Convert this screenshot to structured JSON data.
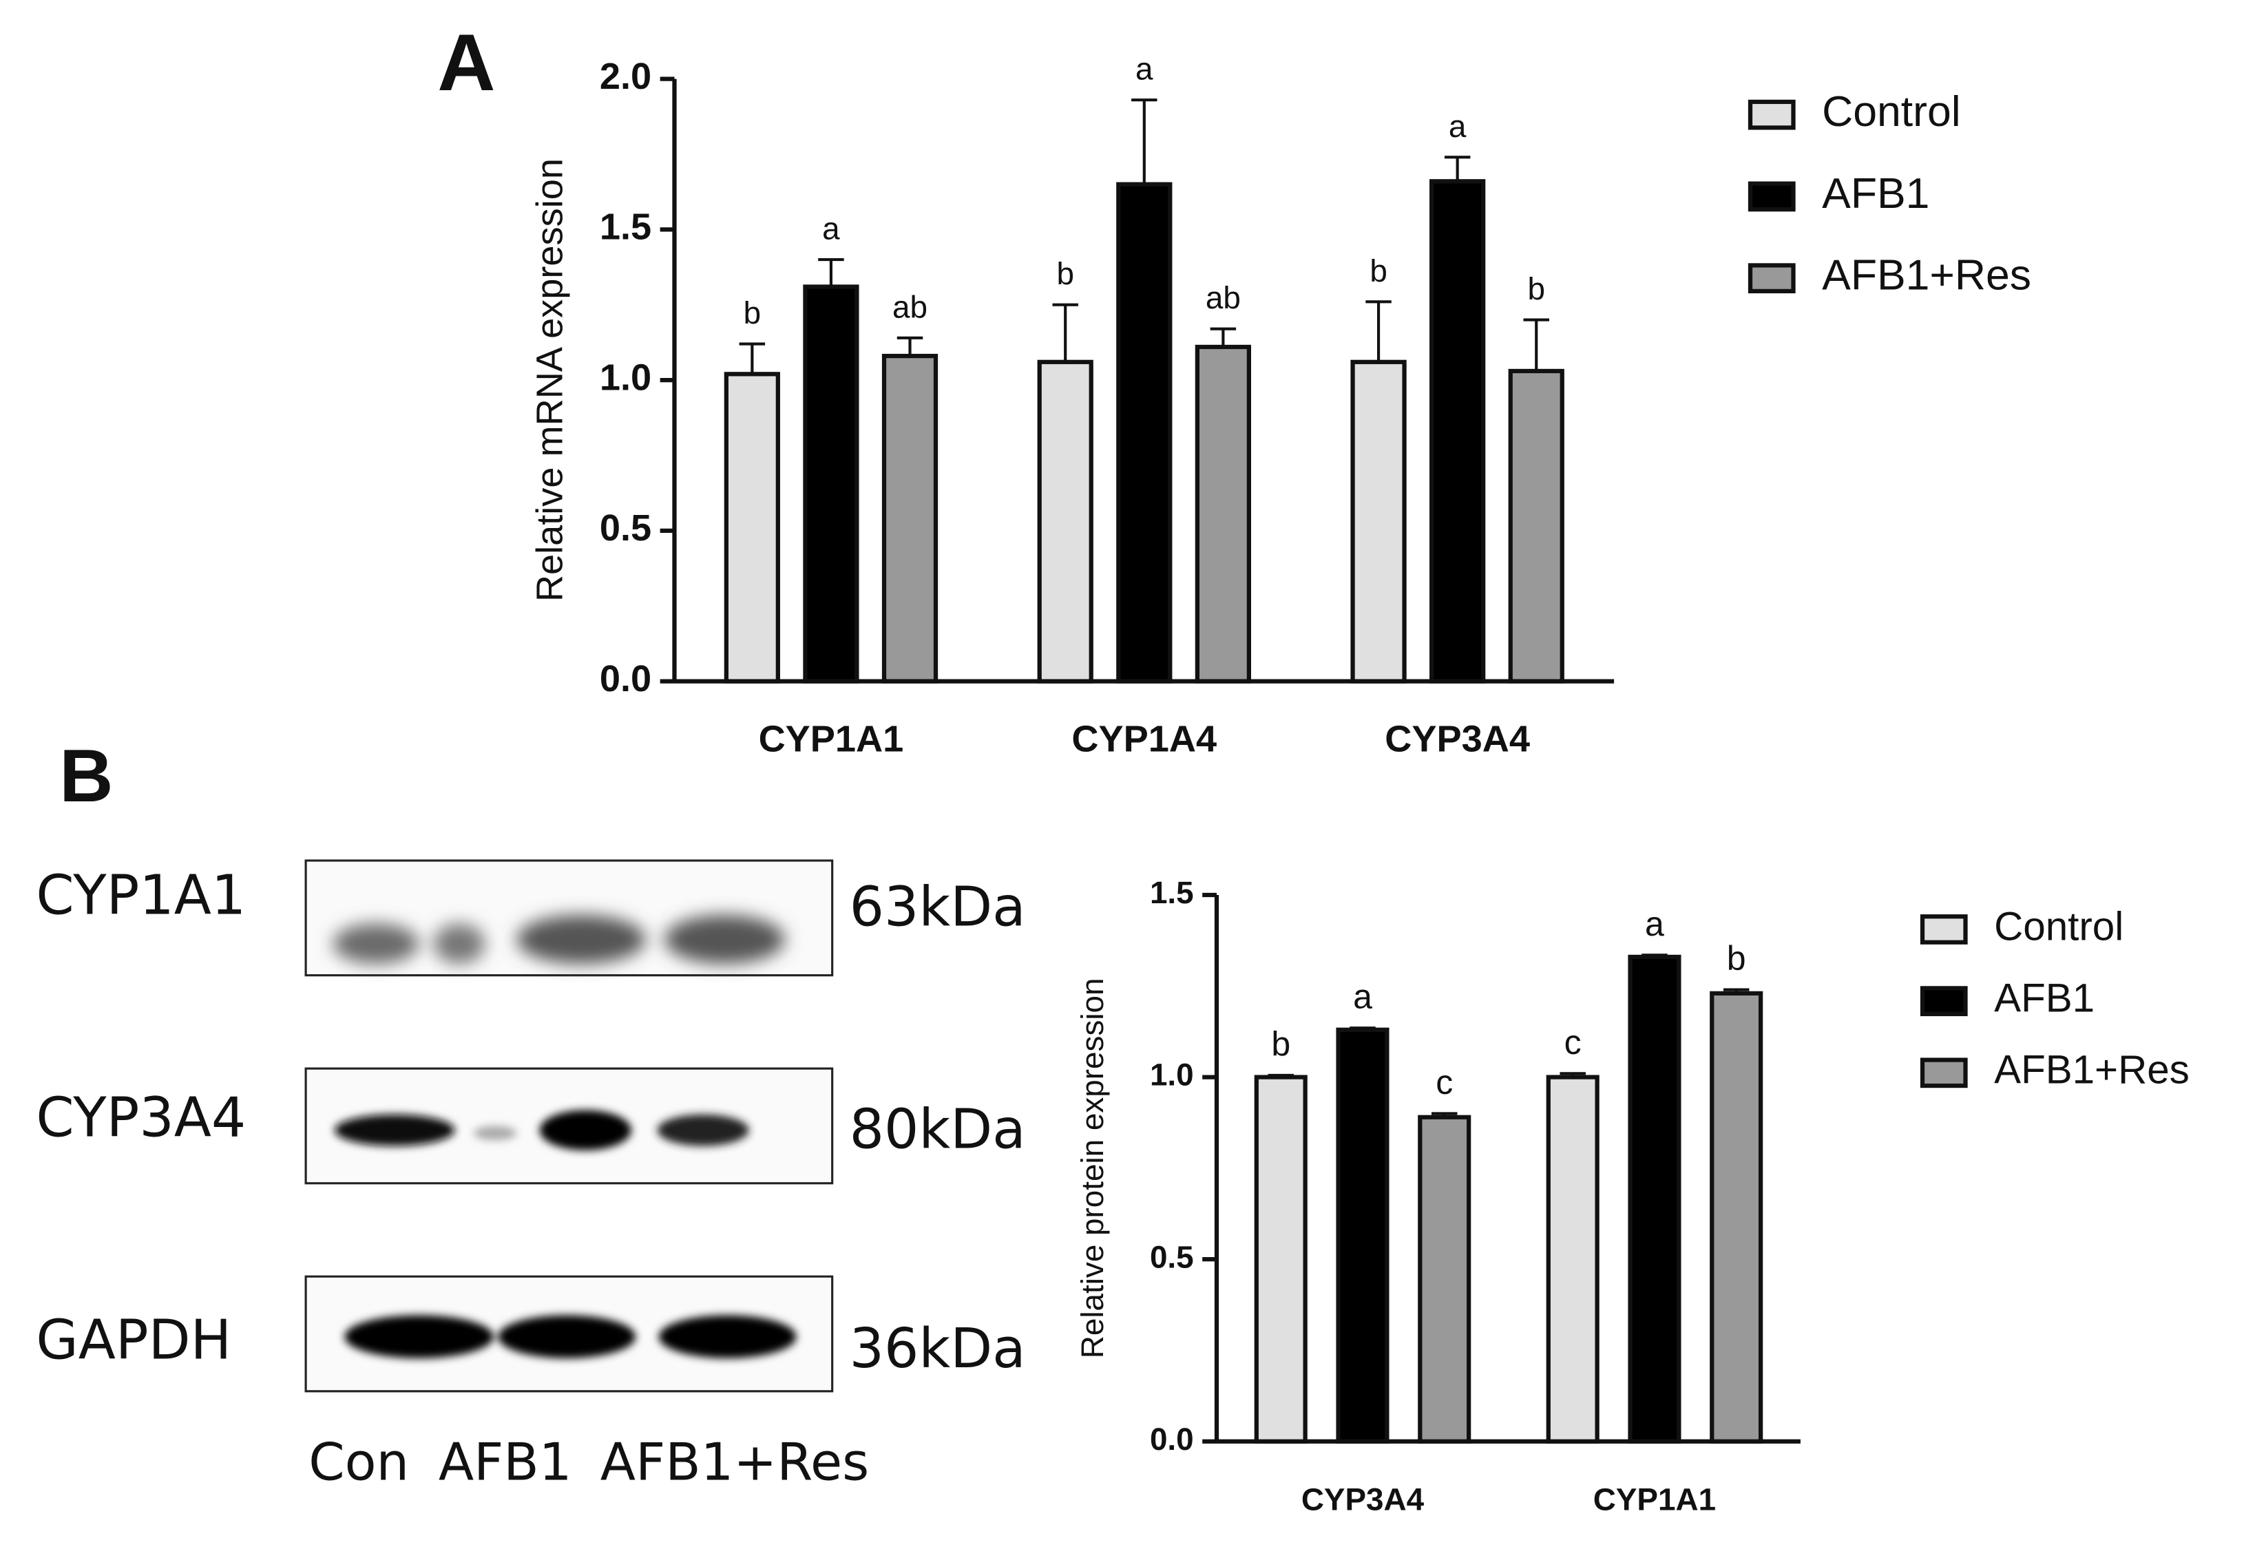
{
  "panels": [
    "A",
    "B"
  ],
  "chart_data": [
    {
      "type": "bar",
      "y_label": "Relative mRNA expression",
      "categories": [
        "CYP1A1",
        "CYP1A4",
        "CYP3A4"
      ],
      "ylim": [
        0,
        2
      ],
      "yticks": [
        {
          "value": 0,
          "label": "0.0"
        },
        0.5,
        {
          "value": 1,
          "label": "1.0"
        },
        1.5,
        {
          "value": 2,
          "label": "2.0"
        }
      ],
      "legend": "right",
      "series": [
        {
          "name": "Control",
          "color": "#e0e0e0",
          "values": [
            1.02,
            1.06,
            1.06
          ],
          "errors": [
            0.1,
            0.19,
            0.2
          ],
          "annotations": [
            "b",
            "b",
            "b"
          ]
        },
        {
          "name": "AFB1",
          "color": "#000000",
          "values": [
            1.31,
            1.65,
            1.66
          ],
          "errors": [
            0.09,
            0.28,
            0.08
          ],
          "annotations": [
            "a",
            "a",
            "a"
          ]
        },
        {
          "name": "AFB1+Res",
          "color": "#999999",
          "values": [
            1.08,
            1.11,
            1.03
          ],
          "errors": [
            0.06,
            0.06,
            0.17
          ],
          "annotations": [
            "ab",
            "ab",
            "b"
          ]
        }
      ]
    },
    {
      "type": "bar",
      "y_label": "Relative protein expression",
      "categories": [
        "CYP3A4",
        "CYP1A1"
      ],
      "ylim": [
        0,
        1.5
      ],
      "yticks": [
        {
          "value": 0,
          "label": "0.0"
        },
        0.5,
        {
          "value": 1,
          "label": "1.0"
        },
        1.5
      ],
      "legend": "right",
      "series": [
        {
          "name": "Control",
          "color": "#e0e0e0",
          "values": [
            1.0,
            1.0
          ],
          "errors": [
            0.005,
            0.01
          ],
          "annotations": [
            "b",
            "c"
          ]
        },
        {
          "name": "AFB1",
          "color": "#000000",
          "values": [
            1.13,
            1.33
          ],
          "errors": [
            0.005,
            0.005
          ],
          "annotations": [
            "a",
            "a"
          ]
        },
        {
          "name": "AFB1+Res",
          "color": "#999999",
          "values": [
            0.89,
            1.23
          ],
          "errors": [
            0.01,
            0.01
          ],
          "annotations": [
            "c",
            "b"
          ]
        }
      ]
    }
  ],
  "blot": {
    "rows": [
      "CYP1A1",
      "CYP3A4",
      "GAPDH"
    ],
    "sizes": [
      "63kDa",
      "80kDa",
      "36kDa"
    ],
    "lanes": [
      "Con",
      "AFB1",
      "AFB1+Res"
    ]
  }
}
